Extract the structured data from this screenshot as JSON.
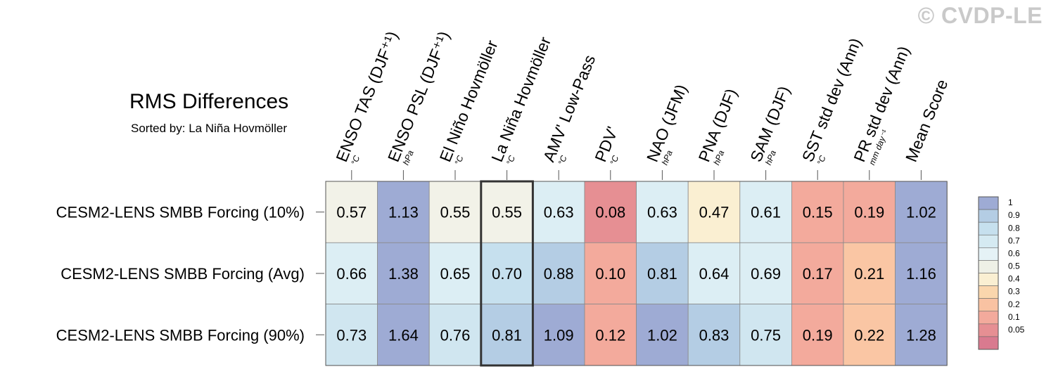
{
  "watermark": "© CVDP-LE",
  "chart_data": {
    "type": "heatmap",
    "title": "RMS Differences",
    "subtitle": "Sorted by: La Niña Hovmöller",
    "columns": [
      {
        "label": "ENSO TAS (DJF⁺¹)",
        "unit": "°C"
      },
      {
        "label": "ENSO PSL (DJF⁺¹)",
        "unit": "hPa"
      },
      {
        "label": "El Niño Hovmöller",
        "unit": "°C"
      },
      {
        "label": "La Niña Hovmöller",
        "unit": "°C"
      },
      {
        "label": "AMV' Low-Pass",
        "unit": "°C"
      },
      {
        "label": "PDV'",
        "unit": "°C"
      },
      {
        "label": "NAO (JFM)",
        "unit": "hPa"
      },
      {
        "label": "PNA (DJF)",
        "unit": "hPa"
      },
      {
        "label": "SAM (DJF)",
        "unit": "hPa"
      },
      {
        "label": "SST std dev (Ann)",
        "unit": "°C"
      },
      {
        "label": "PR std dev (Ann)",
        "unit": "mm day⁻¹"
      },
      {
        "label": "Mean Score",
        "unit": ""
      }
    ],
    "rows": [
      {
        "label": "CESM2-LENS SMBB Forcing (10%)",
        "values": [
          "0.57",
          "1.13",
          "0.55",
          "0.55",
          "0.63",
          "0.08",
          "0.63",
          "0.47",
          "0.61",
          "0.15",
          "0.19",
          "1.02"
        ]
      },
      {
        "label": "CESM2-LENS SMBB Forcing (Avg)",
        "values": [
          "0.66",
          "1.38",
          "0.65",
          "0.70",
          "0.88",
          "0.10",
          "0.81",
          "0.64",
          "0.69",
          "0.17",
          "0.21",
          "1.16"
        ]
      },
      {
        "label": "CESM2-LENS SMBB Forcing (90%)",
        "values": [
          "0.73",
          "1.64",
          "0.76",
          "0.81",
          "1.09",
          "0.12",
          "1.02",
          "0.83",
          "0.75",
          "0.19",
          "0.22",
          "1.28"
        ]
      }
    ],
    "highlighted_column": 3,
    "colorbar": {
      "ticks": [
        "1",
        "0.9",
        "0.8",
        "0.7",
        "0.6",
        "0.5",
        "0.4",
        "0.3",
        "0.2",
        "0.1",
        "0.05"
      ],
      "colors": [
        "#9eabd4",
        "#b4cde4",
        "#c6e0ee",
        "#d5eaf2",
        "#e5f2f6",
        "#eef0e6",
        "#faefd2",
        "#fad6ad",
        "#f9c2a2",
        "#f3aa9c",
        "#e68f93",
        "#d97a8f"
      ]
    },
    "cell_colors": [
      [
        "#f2f2e8",
        "#9eabd4",
        "#f2f2e8",
        "#f2f2e8",
        "#dceef4",
        "#e68f93",
        "#dceef4",
        "#faefd2",
        "#dceef4",
        "#f3aa9c",
        "#f3aa9c",
        "#9eabd4"
      ],
      [
        "#dceef4",
        "#9eabd4",
        "#dceef4",
        "#c6e0ee",
        "#b4cde4",
        "#f3aa9c",
        "#b4cde4",
        "#dceef4",
        "#dceef4",
        "#f3aa9c",
        "#fac6a4",
        "#9eabd4"
      ],
      [
        "#d0e6f0",
        "#9eabd4",
        "#d0e6f0",
        "#b4cde4",
        "#9eabd4",
        "#f3aa9c",
        "#9eabd4",
        "#b4cde4",
        "#d0e6f0",
        "#f3aa9c",
        "#fac6a4",
        "#9eabd4"
      ]
    ]
  }
}
